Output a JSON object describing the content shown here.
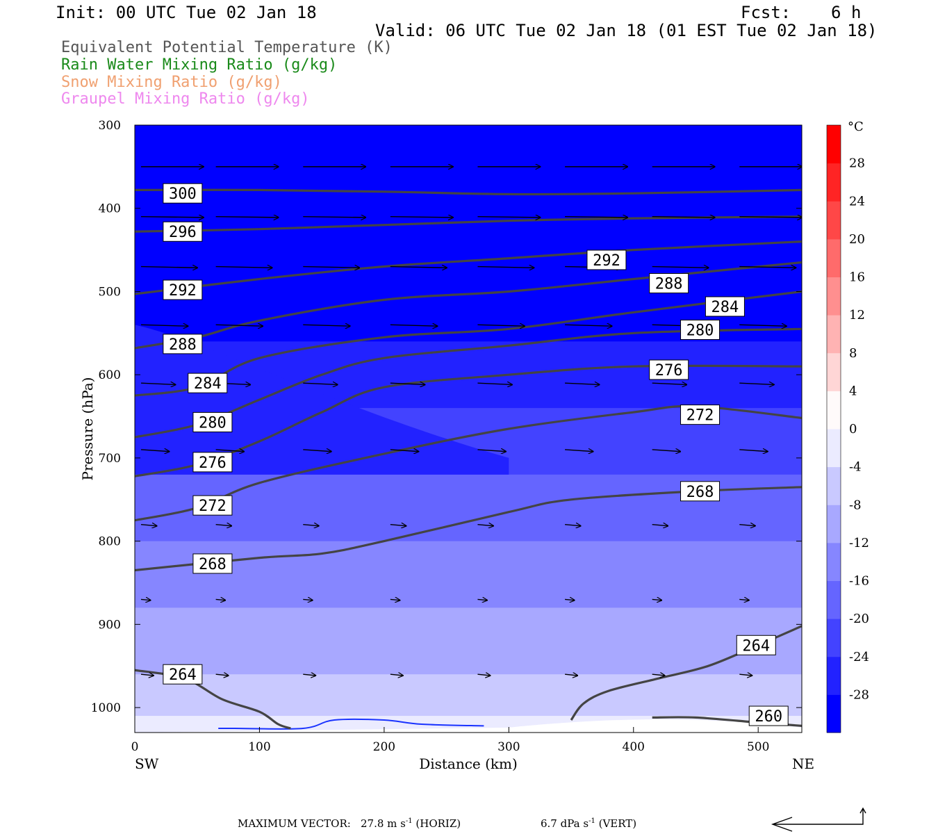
{
  "header": {
    "init": "Init: 00 UTC Tue 02 Jan 18",
    "fcst": "Fcst:    6 h",
    "valid": "Valid: 06 UTC Tue 02 Jan 18 (01 EST Tue 02 Jan 18)"
  },
  "legend": [
    {
      "label": "Equivalent Potential Temperature (K)",
      "color": "#555555"
    },
    {
      "label": "Rain Water Mixing Ratio (g/kg)",
      "color": "#1a8a1a"
    },
    {
      "label": "Snow Mixing Ratio (g/kg)",
      "color": "#f0a070"
    },
    {
      "label": "Graupel Mixing Ratio (g/kg)",
      "color": "#ee88ee"
    }
  ],
  "footer": {
    "max_vector_label": "MAXIMUM VECTOR:",
    "horiz_value": "27.8 m s",
    "horiz_exp": "-1",
    "horiz_unit": "(HORIZ)",
    "vert_value": "6.7 dPa s",
    "vert_exp": "-1",
    "vert_unit": "(VERT)"
  },
  "chart_data": {
    "type": "contour",
    "xlabel": "Distance (km)",
    "ylabel": "Pressure (hPa)",
    "xlim": [
      0,
      535
    ],
    "ylim": [
      1030,
      300
    ],
    "x_ticks": [
      "0",
      "100",
      "200",
      "300",
      "400",
      "500"
    ],
    "y_ticks": [
      "300",
      "400",
      "500",
      "600",
      "700",
      "800",
      "900",
      "1000"
    ],
    "x_end_labels": {
      "left": "SW",
      "right": "NE"
    },
    "colorbar": {
      "unit": "°C",
      "labels": [
        "28",
        "24",
        "20",
        "16",
        "12",
        "8",
        "4",
        "0",
        "-4",
        "-8",
        "-12",
        "-16",
        "-20",
        "-24",
        "-28"
      ],
      "ticks": [
        28,
        24,
        20,
        16,
        12,
        8,
        4,
        0,
        -4,
        -8,
        -12,
        -16,
        -20,
        -24,
        -28
      ],
      "range": [
        -32,
        32
      ]
    },
    "theta_e_contours": [
      {
        "label": "300",
        "points": [
          [
            0,
            378
          ],
          [
            100,
            378
          ],
          [
            200,
            380
          ],
          [
            300,
            383
          ],
          [
            400,
            382
          ],
          [
            535,
            378
          ]
        ],
        "label_at": [
          25,
          382
        ]
      },
      {
        "label": "296",
        "points": [
          [
            0,
            428
          ],
          [
            100,
            425
          ],
          [
            200,
            420
          ],
          [
            300,
            415
          ],
          [
            400,
            412
          ],
          [
            535,
            410
          ]
        ],
        "label_at": [
          25,
          428
        ]
      },
      {
        "label": "292",
        "points": [
          [
            0,
            503
          ],
          [
            100,
            485
          ],
          [
            200,
            470
          ],
          [
            300,
            460
          ],
          [
            400,
            450
          ],
          [
            535,
            440
          ]
        ],
        "label_at": [
          25,
          498
        ],
        "label_at2": [
          365,
          462
        ]
      },
      {
        "label": "288",
        "points": [
          [
            0,
            568
          ],
          [
            50,
            555
          ],
          [
            100,
            535
          ],
          [
            200,
            510
          ],
          [
            300,
            500
          ],
          [
            400,
            485
          ],
          [
            535,
            465
          ]
        ],
        "label_at": [
          25,
          563
        ],
        "label_at2": [
          415,
          490
        ]
      },
      {
        "label": "284",
        "points": [
          [
            0,
            625
          ],
          [
            50,
            615
          ],
          [
            100,
            580
          ],
          [
            200,
            555
          ],
          [
            300,
            545
          ],
          [
            400,
            525
          ],
          [
            535,
            500
          ]
        ],
        "label_at": [
          45,
          610
        ],
        "label_at2": [
          460,
          518
        ]
      },
      {
        "label": "280",
        "points": [
          [
            0,
            675
          ],
          [
            50,
            660
          ],
          [
            100,
            630
          ],
          [
            150,
            600
          ],
          [
            200,
            580
          ],
          [
            300,
            565
          ],
          [
            400,
            550
          ],
          [
            535,
            545
          ]
        ],
        "label_at": [
          49,
          657
        ],
        "label_at2": [
          440,
          546
        ]
      },
      {
        "label": "276",
        "points": [
          [
            0,
            722
          ],
          [
            50,
            708
          ],
          [
            100,
            680
          ],
          [
            150,
            645
          ],
          [
            200,
            615
          ],
          [
            300,
            600
          ],
          [
            400,
            590
          ],
          [
            535,
            590
          ]
        ],
        "label_at": [
          49,
          705
        ],
        "label_at2": [
          415,
          594
        ]
      },
      {
        "label": "272",
        "points": [
          [
            0,
            775
          ],
          [
            50,
            760
          ],
          [
            100,
            730
          ],
          [
            200,
            695
          ],
          [
            300,
            665
          ],
          [
            400,
            645
          ],
          [
            450,
            638
          ],
          [
            535,
            652
          ]
        ],
        "label_at": [
          49,
          757
        ],
        "label_at2": [
          440,
          648
        ]
      },
      {
        "label": "268",
        "points": [
          [
            0,
            835
          ],
          [
            100,
            820
          ],
          [
            150,
            815
          ],
          [
            200,
            800
          ],
          [
            300,
            765
          ],
          [
            350,
            750
          ],
          [
            450,
            740
          ],
          [
            535,
            735
          ]
        ],
        "label_at": [
          49,
          827
        ],
        "label_at2": [
          440,
          740
        ]
      },
      {
        "label": "264",
        "points": [
          [
            0,
            955
          ],
          [
            40,
            965
          ],
          [
            70,
            990
          ],
          [
            100,
            1005
          ],
          [
            115,
            1020
          ],
          [
            125,
            1025
          ]
        ],
        "label_at": [
          25,
          960
        ],
        "label_at2": [
          485,
          925
        ]
      },
      {
        "label": "264",
        "points": [
          [
            350,
            1015
          ],
          [
            360,
            995
          ],
          [
            380,
            980
          ],
          [
            420,
            965
          ],
          [
            460,
            950
          ],
          [
            500,
            925
          ],
          [
            535,
            902
          ]
        ],
        "label_at": null
      },
      {
        "label": "260",
        "points": [
          [
            415,
            1012
          ],
          [
            450,
            1012
          ],
          [
            500,
            1018
          ],
          [
            535,
            1022
          ]
        ],
        "label_at": [
          495,
          1010
        ]
      }
    ],
    "rain_contour": {
      "points": [
        [
          67,
          1025
        ],
        [
          80,
          1025
        ],
        [
          135,
          1025
        ],
        [
          160,
          1015
        ],
        [
          200,
          1015
        ],
        [
          230,
          1020
        ],
        [
          280,
          1022
        ]
      ]
    },
    "wind_rows": [
      {
        "p": 350,
        "x": [
          0,
          60,
          130,
          200,
          270,
          340,
          410,
          480
        ],
        "u": 1.0,
        "w": 0.0
      },
      {
        "p": 410,
        "x": [
          0,
          60,
          130,
          200,
          270,
          340,
          410,
          480
        ],
        "u": 1.0,
        "w": 0.05
      },
      {
        "p": 470,
        "x": [
          0,
          60,
          130,
          200,
          270,
          340,
          410,
          480
        ],
        "u": 0.9,
        "w": 0.08
      },
      {
        "p": 540,
        "x": [
          0,
          60,
          130,
          200,
          270,
          340,
          410,
          480
        ],
        "u": 0.75,
        "w": 0.1
      },
      {
        "p": 610,
        "x": [
          0,
          60,
          130,
          200,
          270,
          340,
          410,
          480
        ],
        "u": 0.55,
        "w": 0.15
      },
      {
        "p": 690,
        "x": [
          0,
          60,
          130,
          200,
          270,
          340,
          410,
          480
        ],
        "u": 0.45,
        "w": 0.2
      },
      {
        "p": 780,
        "x": [
          0,
          60,
          130,
          200,
          270,
          340,
          410,
          480
        ],
        "u": 0.25,
        "w": 0.2
      },
      {
        "p": 870,
        "x": [
          0,
          60,
          130,
          200,
          270,
          340,
          410,
          480
        ],
        "u": 0.15,
        "w": 0.15
      },
      {
        "p": 960,
        "x": [
          0,
          60,
          130,
          200,
          270,
          340,
          410,
          480
        ],
        "u": 0.2,
        "w": 0.2
      }
    ]
  }
}
